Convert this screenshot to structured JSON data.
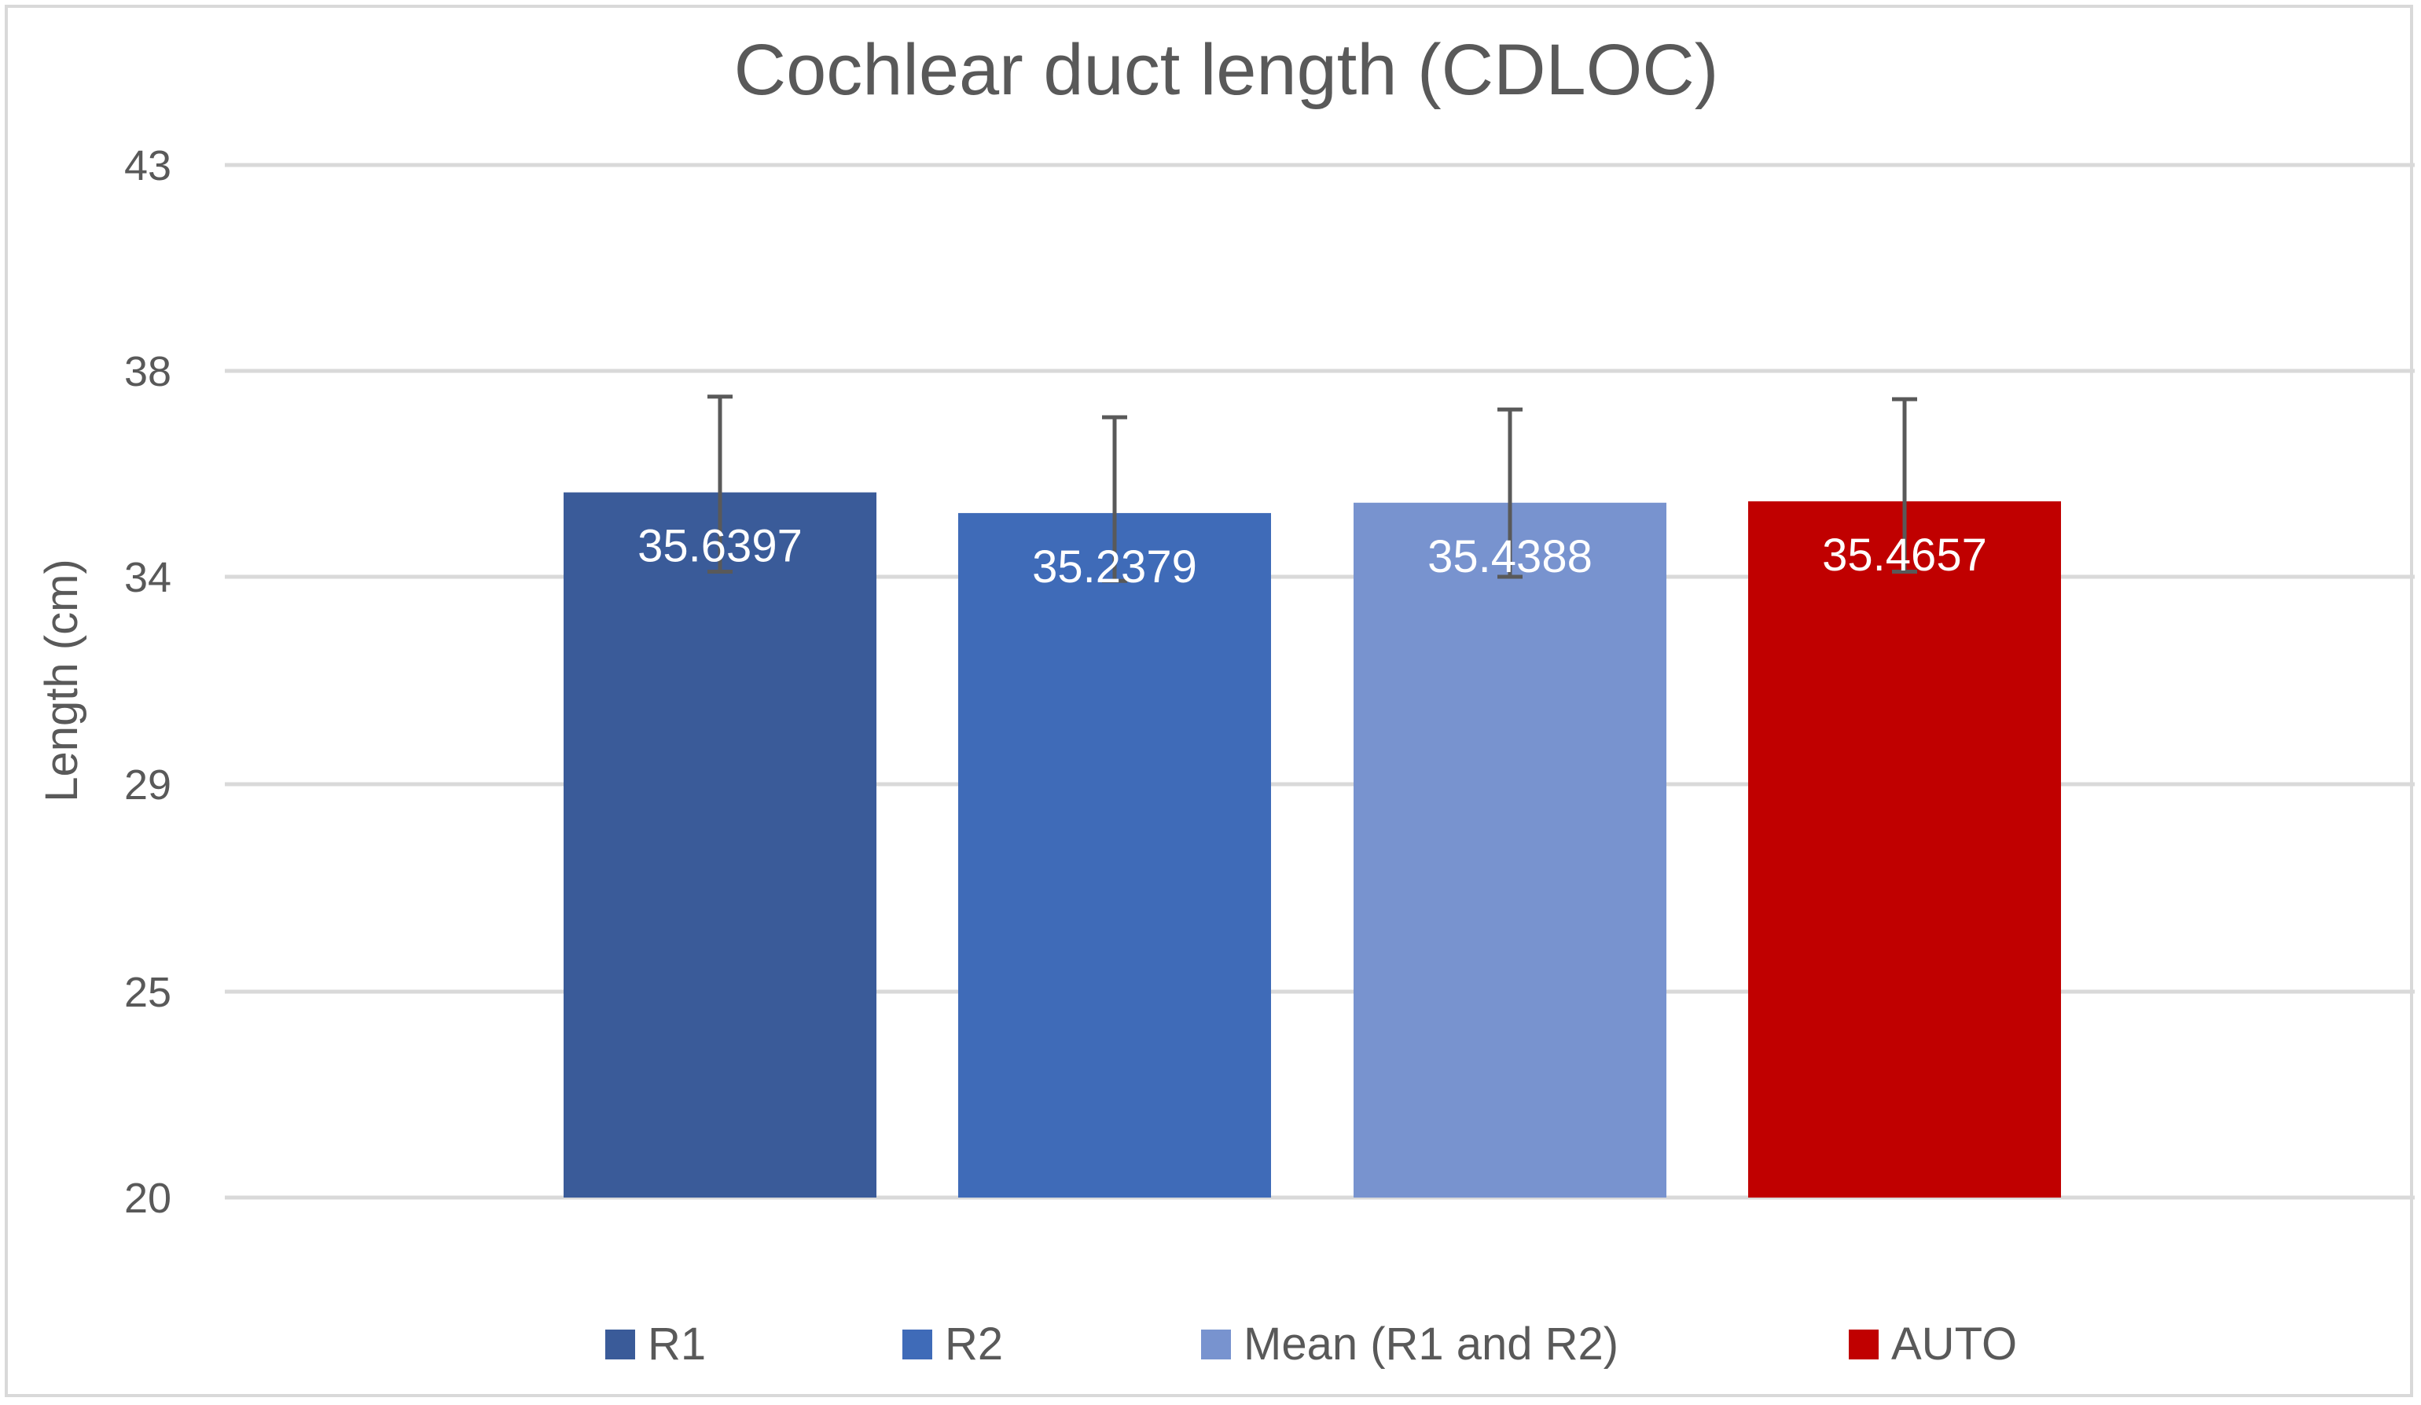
{
  "chart_data": {
    "type": "bar",
    "title": "Cochlear duct length (CDLOC)",
    "xlabel": "",
    "ylabel": "Length (cm)",
    "y_ticks": [
      "20",
      "25",
      "29",
      "34",
      "38",
      "43"
    ],
    "ylim": [
      20,
      43
    ],
    "grid": true,
    "legend_position": "bottom",
    "categories": [
      "R1",
      "R2",
      "Mean (R1 and R2)",
      "AUTO"
    ],
    "values": [
      35.6397,
      35.2379,
      35.4388,
      35.4657
    ],
    "value_labels": [
      "35.6397",
      "35.2379",
      "35.4388",
      "35.4657"
    ],
    "error_upper": [
      37.5,
      37.1,
      37.25,
      37.45
    ],
    "error_lower": [
      34.1,
      33.9,
      34.0,
      34.1
    ],
    "colors": [
      "#3a5b99",
      "#3f6bb8",
      "#7893cf",
      "#c00000"
    ],
    "error_bar_color": "#595959",
    "gridline_color": "#d9d9d9"
  }
}
